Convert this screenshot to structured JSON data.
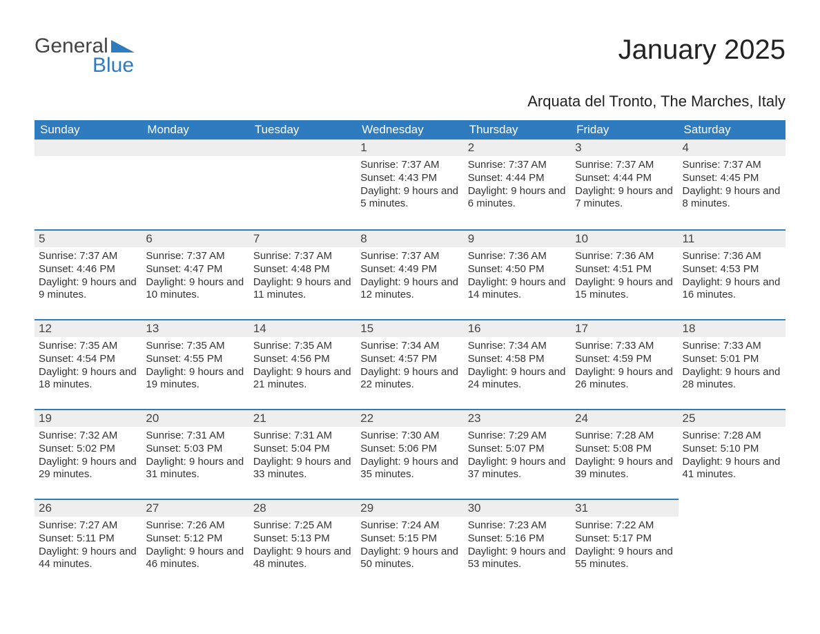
{
  "logo": {
    "text1": "General",
    "text2": "Blue"
  },
  "title": "January 2025",
  "subtitle": "Arquata del Tronto, The Marches, Italy",
  "colors": {
    "header_bg": "#2f7bbf",
    "header_fg": "#ffffff",
    "daybar_bg": "#eeeeee",
    "daybar_border": "#2f7bbf",
    "body_text": "#333333"
  },
  "weekdays": [
    "Sunday",
    "Monday",
    "Tuesday",
    "Wednesday",
    "Thursday",
    "Friday",
    "Saturday"
  ],
  "weeks": [
    [
      null,
      null,
      null,
      {
        "n": "1",
        "sunrise": "7:37 AM",
        "sunset": "4:43 PM",
        "daylight": "9 hours and 5 minutes."
      },
      {
        "n": "2",
        "sunrise": "7:37 AM",
        "sunset": "4:44 PM",
        "daylight": "9 hours and 6 minutes."
      },
      {
        "n": "3",
        "sunrise": "7:37 AM",
        "sunset": "4:44 PM",
        "daylight": "9 hours and 7 minutes."
      },
      {
        "n": "4",
        "sunrise": "7:37 AM",
        "sunset": "4:45 PM",
        "daylight": "9 hours and 8 minutes."
      }
    ],
    [
      {
        "n": "5",
        "sunrise": "7:37 AM",
        "sunset": "4:46 PM",
        "daylight": "9 hours and 9 minutes."
      },
      {
        "n": "6",
        "sunrise": "7:37 AM",
        "sunset": "4:47 PM",
        "daylight": "9 hours and 10 minutes."
      },
      {
        "n": "7",
        "sunrise": "7:37 AM",
        "sunset": "4:48 PM",
        "daylight": "9 hours and 11 minutes."
      },
      {
        "n": "8",
        "sunrise": "7:37 AM",
        "sunset": "4:49 PM",
        "daylight": "9 hours and 12 minutes."
      },
      {
        "n": "9",
        "sunrise": "7:36 AM",
        "sunset": "4:50 PM",
        "daylight": "9 hours and 14 minutes."
      },
      {
        "n": "10",
        "sunrise": "7:36 AM",
        "sunset": "4:51 PM",
        "daylight": "9 hours and 15 minutes."
      },
      {
        "n": "11",
        "sunrise": "7:36 AM",
        "sunset": "4:53 PM",
        "daylight": "9 hours and 16 minutes."
      }
    ],
    [
      {
        "n": "12",
        "sunrise": "7:35 AM",
        "sunset": "4:54 PM",
        "daylight": "9 hours and 18 minutes."
      },
      {
        "n": "13",
        "sunrise": "7:35 AM",
        "sunset": "4:55 PM",
        "daylight": "9 hours and 19 minutes."
      },
      {
        "n": "14",
        "sunrise": "7:35 AM",
        "sunset": "4:56 PM",
        "daylight": "9 hours and 21 minutes."
      },
      {
        "n": "15",
        "sunrise": "7:34 AM",
        "sunset": "4:57 PM",
        "daylight": "9 hours and 22 minutes."
      },
      {
        "n": "16",
        "sunrise": "7:34 AM",
        "sunset": "4:58 PM",
        "daylight": "9 hours and 24 minutes."
      },
      {
        "n": "17",
        "sunrise": "7:33 AM",
        "sunset": "4:59 PM",
        "daylight": "9 hours and 26 minutes."
      },
      {
        "n": "18",
        "sunrise": "7:33 AM",
        "sunset": "5:01 PM",
        "daylight": "9 hours and 28 minutes."
      }
    ],
    [
      {
        "n": "19",
        "sunrise": "7:32 AM",
        "sunset": "5:02 PM",
        "daylight": "9 hours and 29 minutes."
      },
      {
        "n": "20",
        "sunrise": "7:31 AM",
        "sunset": "5:03 PM",
        "daylight": "9 hours and 31 minutes."
      },
      {
        "n": "21",
        "sunrise": "7:31 AM",
        "sunset": "5:04 PM",
        "daylight": "9 hours and 33 minutes."
      },
      {
        "n": "22",
        "sunrise": "7:30 AM",
        "sunset": "5:06 PM",
        "daylight": "9 hours and 35 minutes."
      },
      {
        "n": "23",
        "sunrise": "7:29 AM",
        "sunset": "5:07 PM",
        "daylight": "9 hours and 37 minutes."
      },
      {
        "n": "24",
        "sunrise": "7:28 AM",
        "sunset": "5:08 PM",
        "daylight": "9 hours and 39 minutes."
      },
      {
        "n": "25",
        "sunrise": "7:28 AM",
        "sunset": "5:10 PM",
        "daylight": "9 hours and 41 minutes."
      }
    ],
    [
      {
        "n": "26",
        "sunrise": "7:27 AM",
        "sunset": "5:11 PM",
        "daylight": "9 hours and 44 minutes."
      },
      {
        "n": "27",
        "sunrise": "7:26 AM",
        "sunset": "5:12 PM",
        "daylight": "9 hours and 46 minutes."
      },
      {
        "n": "28",
        "sunrise": "7:25 AM",
        "sunset": "5:13 PM",
        "daylight": "9 hours and 48 minutes."
      },
      {
        "n": "29",
        "sunrise": "7:24 AM",
        "sunset": "5:15 PM",
        "daylight": "9 hours and 50 minutes."
      },
      {
        "n": "30",
        "sunrise": "7:23 AM",
        "sunset": "5:16 PM",
        "daylight": "9 hours and 53 minutes."
      },
      {
        "n": "31",
        "sunrise": "7:22 AM",
        "sunset": "5:17 PM",
        "daylight": "9 hours and 55 minutes."
      },
      null
    ]
  ],
  "labels": {
    "sunrise": "Sunrise:",
    "sunset": "Sunset:",
    "daylight": "Daylight:"
  }
}
